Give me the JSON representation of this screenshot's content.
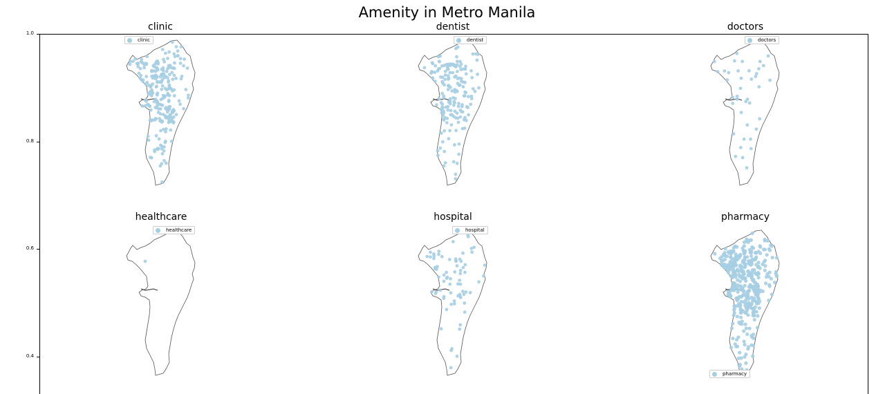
{
  "figure": {
    "title": "Amenity in Metro Manila",
    "point_color": "#a6cee3",
    "outline_color": "#555555",
    "y_ticks": [
      "1.0",
      "0.8",
      "0.6",
      "0.4"
    ]
  },
  "panels": [
    {
      "title": "clinic",
      "legend": "clinic",
      "point_count": 260
    },
    {
      "title": "dentist",
      "legend": "dentist",
      "point_count": 180
    },
    {
      "title": "doctors",
      "legend": "doctors",
      "point_count": 40
    },
    {
      "title": "healthcare",
      "legend": "healthcare",
      "point_count": 1
    },
    {
      "title": "hospital",
      "legend": "hospital",
      "point_count": 75
    },
    {
      "title": "pharmacy",
      "legend": "pharmacy",
      "point_count": 420
    }
  ]
}
